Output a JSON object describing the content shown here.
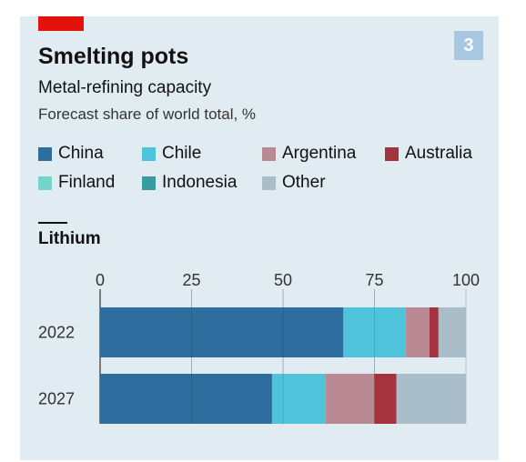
{
  "header": {
    "title": "Smelting pots",
    "subtitle": "Metal-refining capacity",
    "description": "Forecast share of world total, %",
    "badge": "3",
    "accent_color": "#e3120b",
    "badge_color": "#a7c8e0"
  },
  "section": {
    "title": "Lithium"
  },
  "legend": [
    {
      "label": "China",
      "color": "#2e6e9e"
    },
    {
      "label": "Chile",
      "color": "#4ec3d9"
    },
    {
      "label": "Argentina",
      "color": "#b98a93"
    },
    {
      "label": "Australia",
      "color": "#a3343d"
    },
    {
      "label": "Finland",
      "color": "#74d5cd"
    },
    {
      "label": "Indonesia",
      "color": "#3a9b9e"
    },
    {
      "label": "Other",
      "color": "#a9bec9"
    }
  ],
  "chart_data": {
    "type": "bar",
    "orientation": "horizontal",
    "stacked": true,
    "title": "Lithium",
    "categories": [
      "2022",
      "2027"
    ],
    "xlim": [
      0,
      100
    ],
    "xticks": [
      "0",
      "25",
      "50",
      "75",
      "100"
    ],
    "grid": true,
    "series": [
      {
        "name": "China",
        "values": [
          66.5,
          47
        ],
        "color": "#2e6e9e"
      },
      {
        "name": "Chile",
        "values": [
          17,
          14.5
        ],
        "color": "#4ec3d9"
      },
      {
        "name": "Argentina",
        "values": [
          6.5,
          13.5
        ],
        "color": "#b98a93"
      },
      {
        "name": "Australia",
        "values": [
          2.5,
          6
        ],
        "color": "#a3343d"
      },
      {
        "name": "Other",
        "values": [
          7.5,
          19
        ],
        "color": "#a9bec9"
      }
    ]
  }
}
